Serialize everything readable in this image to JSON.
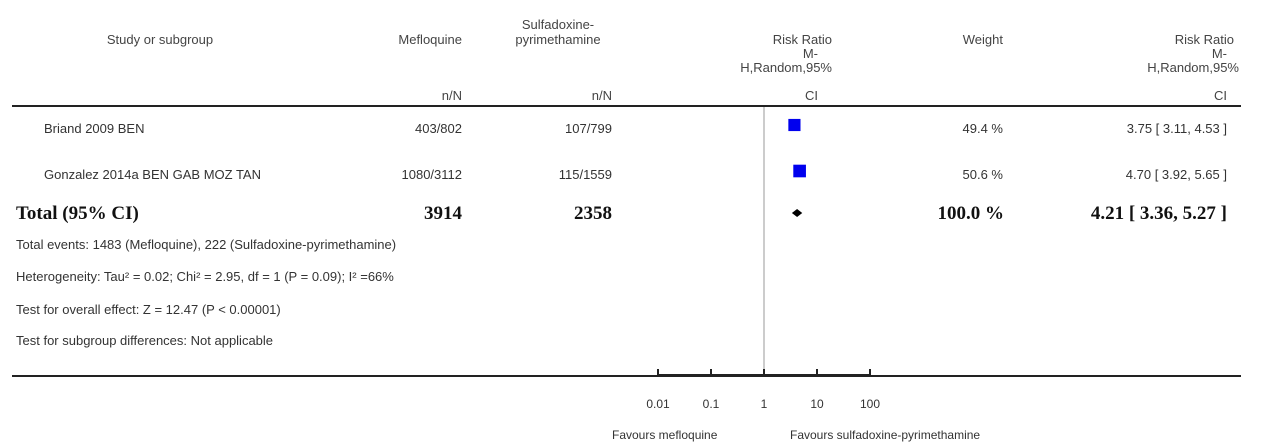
{
  "header": {
    "study": "Study or subgroup",
    "group1": "Mefloquine",
    "group2_line1": "Sulfadoxine-",
    "group2_line2": "pyrimethamine",
    "nN1": "n/N",
    "nN2": "n/N",
    "rr_plot_line1": "Risk Ratio",
    "rr_plot_line2": "M-",
    "rr_plot_line3": "H,Random,95%",
    "rr_plot_line4": "CI",
    "weight": "Weight",
    "rr_line1": "Risk Ratio",
    "rr_line2": "M-",
    "rr_line3": "H,Random,95%",
    "rr_line4": "CI"
  },
  "studies": [
    {
      "name": "Briand 2009 BEN",
      "g1": "403/802",
      "g2": "107/799",
      "weight": "49.4 %",
      "rr": "3.75 [ 3.11, 4.53 ]"
    },
    {
      "name": "Gonzalez 2014a BEN GAB MOZ TAN",
      "g1": "1080/3112",
      "g2": "115/1559",
      "weight": "50.6 %",
      "rr": "4.70 [ 3.92, 5.65 ]"
    }
  ],
  "total": {
    "label": "Total (95% CI)",
    "g1": "3914",
    "g2": "2358",
    "weight": "100.0 %",
    "rr": "4.21 [ 3.36, 5.27 ]"
  },
  "notes": {
    "events": "Total events: 1483 (Mefloquine), 222 (Sulfadoxine-pyrimethamine)",
    "heterogeneity": "Heterogeneity: Tau² = 0.02; Chi² = 2.95, df = 1 (P = 0.09); I² =66%",
    "overall": "Test for overall effect: Z = 12.47 (P < 0.00001)",
    "subgroup": "Test for subgroup differences: Not applicable"
  },
  "axis": {
    "ticks": [
      "0.01",
      "0.1",
      "1",
      "10",
      "100"
    ],
    "favours_left": "Favours mefloquine",
    "favours_right": "Favours sulfadoxine-pyrimethamine"
  },
  "chart_data": {
    "type": "forest",
    "scale": "log",
    "xlim": [
      0.01,
      100
    ],
    "tick_values": [
      0.01,
      0.1,
      1,
      10,
      100
    ],
    "null_value": 1,
    "marker_color": "#0000ee",
    "studies": [
      {
        "name": "Briand 2009 BEN",
        "rr": 3.75,
        "ci": [
          3.11,
          4.53
        ],
        "weight": 49.4
      },
      {
        "name": "Gonzalez 2014a BEN GAB MOZ TAN",
        "rr": 4.7,
        "ci": [
          3.92,
          5.65
        ],
        "weight": 50.6
      }
    ],
    "pooled": {
      "rr": 4.21,
      "ci": [
        3.36,
        5.27
      ]
    }
  }
}
